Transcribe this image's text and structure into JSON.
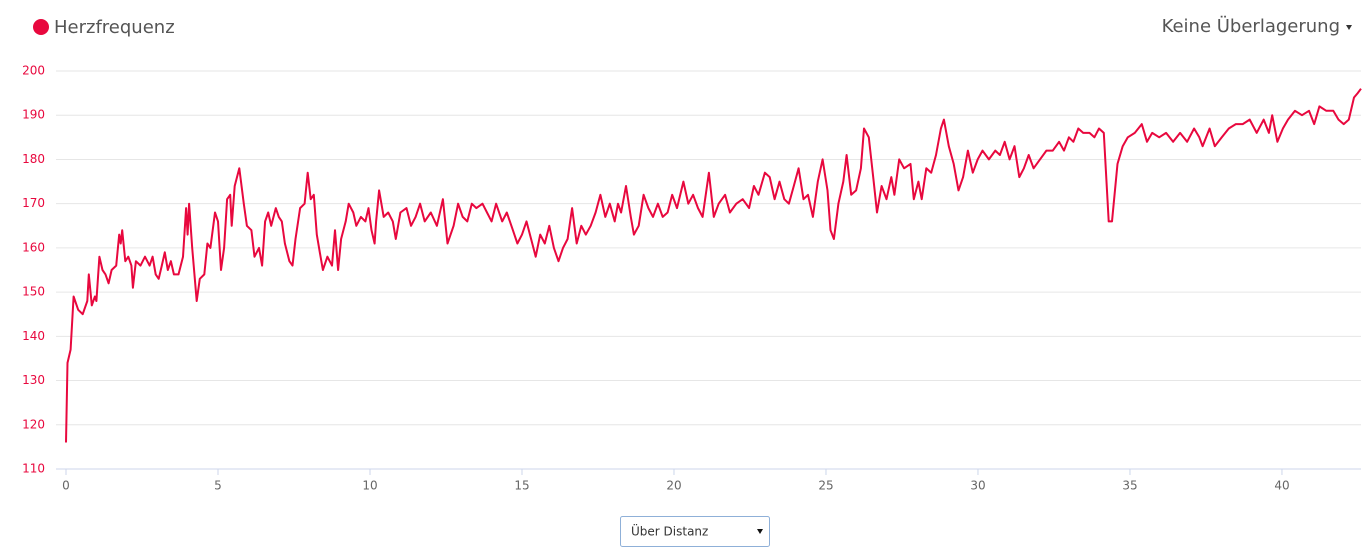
{
  "chart_data": {
    "type": "line",
    "x": [
      0,
      0.05,
      0.15,
      0.25,
      0.4,
      0.55,
      0.7,
      0.75,
      0.85,
      0.95,
      1.0,
      1.1,
      1.2,
      1.3,
      1.4,
      1.5,
      1.65,
      1.75,
      1.8,
      1.85,
      1.95,
      2.05,
      2.15,
      2.2,
      2.3,
      2.45,
      2.6,
      2.75,
      2.85,
      2.95,
      3.05,
      3.15,
      3.25,
      3.35,
      3.45,
      3.55,
      3.7,
      3.85,
      3.95,
      4.0,
      4.05,
      4.15,
      4.3,
      4.4,
      4.55,
      4.65,
      4.75,
      4.9,
      5.0,
      5.1,
      5.2,
      5.3,
      5.4,
      5.45,
      5.55,
      5.7,
      5.85,
      5.95,
      6.1,
      6.2,
      6.35,
      6.45,
      6.55,
      6.65,
      6.75,
      6.9,
      7.0,
      7.1,
      7.2,
      7.35,
      7.45,
      7.55,
      7.7,
      7.85,
      7.95,
      8.05,
      8.15,
      8.25,
      8.35,
      8.45,
      8.6,
      8.75,
      8.85,
      8.95,
      9.05,
      9.2,
      9.3,
      9.45,
      9.55,
      9.7,
      9.85,
      9.95,
      10.05,
      10.15,
      10.2,
      10.3,
      10.45,
      10.6,
      10.75,
      10.85,
      11.0,
      11.2,
      11.35,
      11.5,
      11.65,
      11.8,
      12.0,
      12.2,
      12.4,
      12.55,
      12.75,
      12.9,
      13.05,
      13.2,
      13.35,
      13.5,
      13.7,
      13.85,
      14.0,
      14.15,
      14.35,
      14.5,
      14.7,
      14.85,
      15.0,
      15.15,
      15.3,
      15.45,
      15.6,
      15.75,
      15.9,
      16.05,
      16.2,
      16.35,
      16.5,
      16.65,
      16.8,
      16.95,
      17.1,
      17.26,
      17.42,
      17.58,
      17.74,
      17.89,
      18.05,
      18.16,
      18.26,
      18.42,
      18.58,
      18.68,
      18.84,
      19.0,
      19.16,
      19.31,
      19.47,
      19.63,
      19.79,
      19.94,
      20.1,
      20.31,
      20.47,
      20.63,
      20.79,
      20.94,
      21.15,
      21.31,
      21.47,
      21.68,
      21.84,
      22.05,
      22.26,
      22.47,
      22.63,
      22.78,
      22.99,
      23.15,
      23.31,
      23.47,
      23.63,
      23.78,
      23.94,
      24.1,
      24.26,
      24.41,
      24.57,
      24.73,
      24.89,
      25.05,
      25.15,
      25.26,
      25.41,
      25.57,
      25.68,
      25.83,
      25.99,
      26.15,
      26.25,
      26.41,
      26.57,
      26.68,
      26.83,
      26.99,
      27.15,
      27.25,
      27.41,
      27.57,
      27.78,
      27.89,
      28.04,
      28.15,
      28.3,
      28.46,
      28.62,
      28.78,
      28.88,
      29.04,
      29.2,
      29.36,
      29.51,
      29.67,
      29.83,
      29.99,
      30.15,
      30.36,
      30.57,
      30.72,
      30.88,
      31.04,
      31.2,
      31.36,
      31.51,
      31.67,
      31.83,
      32.04,
      32.25,
      32.46,
      32.67,
      32.83,
      32.99,
      33.14,
      33.3,
      33.46,
      33.67,
      33.83,
      33.98,
      34.14,
      34.3,
      34.41,
      34.59,
      34.76,
      34.93,
      35.16,
      35.39,
      35.56,
      35.73,
      35.96,
      36.19,
      36.42,
      36.65,
      36.88,
      37.11,
      37.28,
      37.39,
      37.62,
      37.79,
      38.02,
      38.25,
      38.48,
      38.71,
      38.94,
      39.17,
      39.4,
      39.57,
      39.68,
      39.85,
      40.03,
      40.2,
      40.43,
      40.66,
      40.89,
      41.06,
      41.23,
      41.46,
      41.69,
      41.86,
      42.03,
      42.2,
      42.37,
      42.49,
      42.6
    ],
    "series": [
      {
        "name": "Herzfrequenz",
        "color": "#e8083e",
        "values": [
          116,
          134,
          137,
          149,
          146,
          145,
          148,
          154,
          147,
          149,
          148,
          158,
          155,
          154,
          152,
          155,
          156,
          163,
          161,
          164,
          157,
          158,
          156,
          151,
          157,
          156,
          158,
          156,
          158,
          154,
          153,
          156,
          159,
          155,
          157,
          154,
          154,
          158,
          169,
          163,
          170,
          160,
          148,
          153,
          154,
          161,
          160,
          168,
          166,
          155,
          160,
          171,
          172,
          165,
          174,
          178,
          170,
          165,
          164,
          158,
          160,
          156,
          166,
          168,
          165,
          169,
          167,
          166,
          161,
          157,
          156,
          162,
          169,
          170,
          177,
          171,
          172,
          163,
          159,
          155,
          158,
          156,
          164,
          155,
          162,
          166,
          170,
          168,
          165,
          167,
          166,
          169,
          164,
          161,
          166,
          173,
          167,
          168,
          166,
          162,
          168,
          169,
          165,
          167,
          170,
          166,
          168,
          165,
          171,
          161,
          165,
          170,
          167,
          166,
          170,
          169,
          170,
          168,
          166,
          170,
          166,
          168,
          164,
          161,
          163,
          166,
          162,
          158,
          163,
          161,
          165,
          160,
          157,
          160,
          162,
          169,
          161,
          165,
          163,
          165,
          168,
          172,
          167,
          170,
          166,
          170,
          168,
          174,
          167,
          163,
          165,
          172,
          169,
          167,
          170,
          167,
          168,
          172,
          169,
          175,
          170,
          172,
          169,
          167,
          177,
          167,
          170,
          172,
          168,
          170,
          171,
          169,
          174,
          172,
          177,
          176,
          171,
          175,
          171,
          170,
          174,
          178,
          171,
          172,
          167,
          175,
          180,
          173,
          164,
          162,
          170,
          175,
          181,
          172,
          173,
          178,
          187,
          185,
          175,
          168,
          174,
          171,
          176,
          172,
          180,
          178,
          179,
          171,
          175,
          171,
          178,
          177,
          181,
          187,
          189,
          183,
          179,
          173,
          176,
          182,
          177,
          180,
          182,
          180,
          182,
          181,
          184,
          180,
          183,
          176,
          178,
          181,
          178,
          180,
          182,
          182,
          184,
          182,
          185,
          184,
          187,
          186,
          186,
          185,
          187,
          186,
          166,
          166,
          179,
          183,
          185,
          186,
          188,
          184,
          186,
          185,
          186,
          184,
          186,
          184,
          187,
          185,
          183,
          187,
          183,
          185,
          187,
          188,
          188,
          189,
          186,
          189,
          186,
          190,
          184,
          187,
          189,
          191,
          190,
          191,
          188,
          192,
          191,
          191,
          189,
          188,
          189,
          194,
          195,
          196
        ]
      }
    ],
    "xlim": [
      0,
      42.6
    ],
    "ylim": [
      110,
      200
    ],
    "xticks": [
      0,
      5,
      10,
      15,
      20,
      25,
      30,
      35,
      40
    ],
    "yticks": [
      110,
      120,
      130,
      140,
      150,
      160,
      170,
      180,
      190,
      200
    ],
    "grid": true
  },
  "controls": {
    "overlay": "Keine Überlagerung",
    "x_mode": "Über Distanz"
  }
}
